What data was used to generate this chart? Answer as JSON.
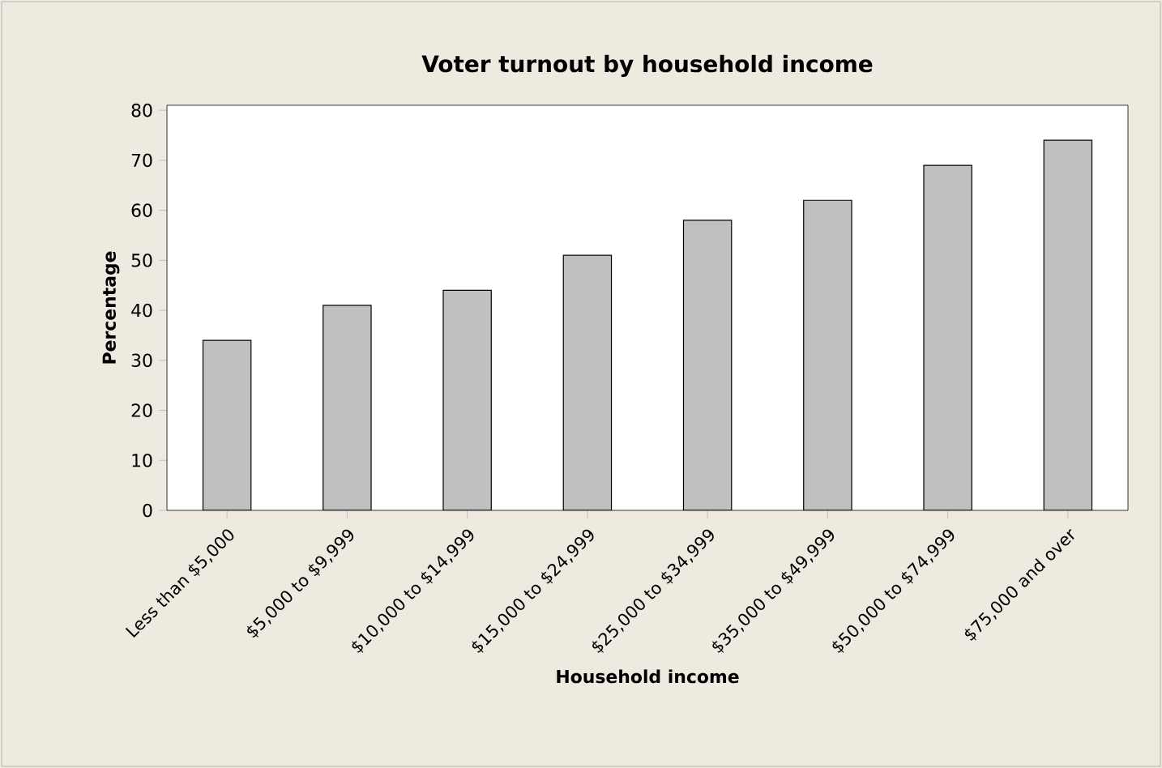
{
  "chart_data": {
    "type": "bar",
    "title": "Voter turnout by household income",
    "xlabel": "Household income",
    "ylabel": "Percentage",
    "categories": [
      "Less than $5,000",
      "$5,000 to $9,999",
      "$10,000 to $14,999",
      "$15,000 to $24,999",
      "$25,000 to $34,999",
      "$35,000 to $49,999",
      "$50,000 to $74,999",
      "$75,000 and over"
    ],
    "values": [
      34,
      41,
      44,
      51,
      58,
      62,
      69,
      74
    ],
    "color": "#c0c0c0",
    "ylim": [
      0,
      81
    ],
    "yticks": [
      0,
      10,
      20,
      30,
      40,
      50,
      60,
      70,
      80
    ]
  }
}
